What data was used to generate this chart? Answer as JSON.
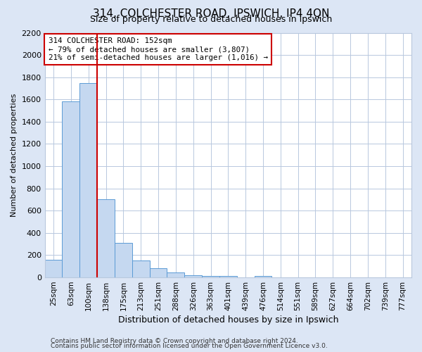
{
  "title": "314, COLCHESTER ROAD, IPSWICH, IP4 4QN",
  "subtitle": "Size of property relative to detached houses in Ipswich",
  "xlabel": "Distribution of detached houses by size in Ipswich",
  "ylabel": "Number of detached properties",
  "bin_labels": [
    "25sqm",
    "63sqm",
    "100sqm",
    "138sqm",
    "175sqm",
    "213sqm",
    "251sqm",
    "288sqm",
    "326sqm",
    "363sqm",
    "401sqm",
    "439sqm",
    "476sqm",
    "514sqm",
    "551sqm",
    "589sqm",
    "627sqm",
    "664sqm",
    "702sqm",
    "739sqm",
    "777sqm"
  ],
  "bar_values": [
    160,
    1580,
    1750,
    700,
    310,
    155,
    80,
    45,
    20,
    15,
    10,
    0,
    15,
    0,
    0,
    0,
    0,
    0,
    0,
    0,
    0
  ],
  "bar_color": "#c5d8f0",
  "bar_edge_color": "#5b9bd5",
  "vline_x": 3.0,
  "vline_color": "#cc0000",
  "annotation_line1": "314 COLCHESTER ROAD: 152sqm",
  "annotation_line2": "← 79% of detached houses are smaller (3,807)",
  "annotation_line3": "21% of semi-detached houses are larger (1,016) →",
  "annotation_box_color": "#ffffff",
  "annotation_box_edge": "#cc0000",
  "ylim": [
    0,
    2200
  ],
  "yticks": [
    0,
    200,
    400,
    600,
    800,
    1000,
    1200,
    1400,
    1600,
    1800,
    2000,
    2200
  ],
  "grid_color": "#b8c8de",
  "plot_bg_color": "#ffffff",
  "fig_bg_color": "#dce6f5",
  "footer_line1": "Contains HM Land Registry data © Crown copyright and database right 2024.",
  "footer_line2": "Contains public sector information licensed under the Open Government Licence v3.0."
}
